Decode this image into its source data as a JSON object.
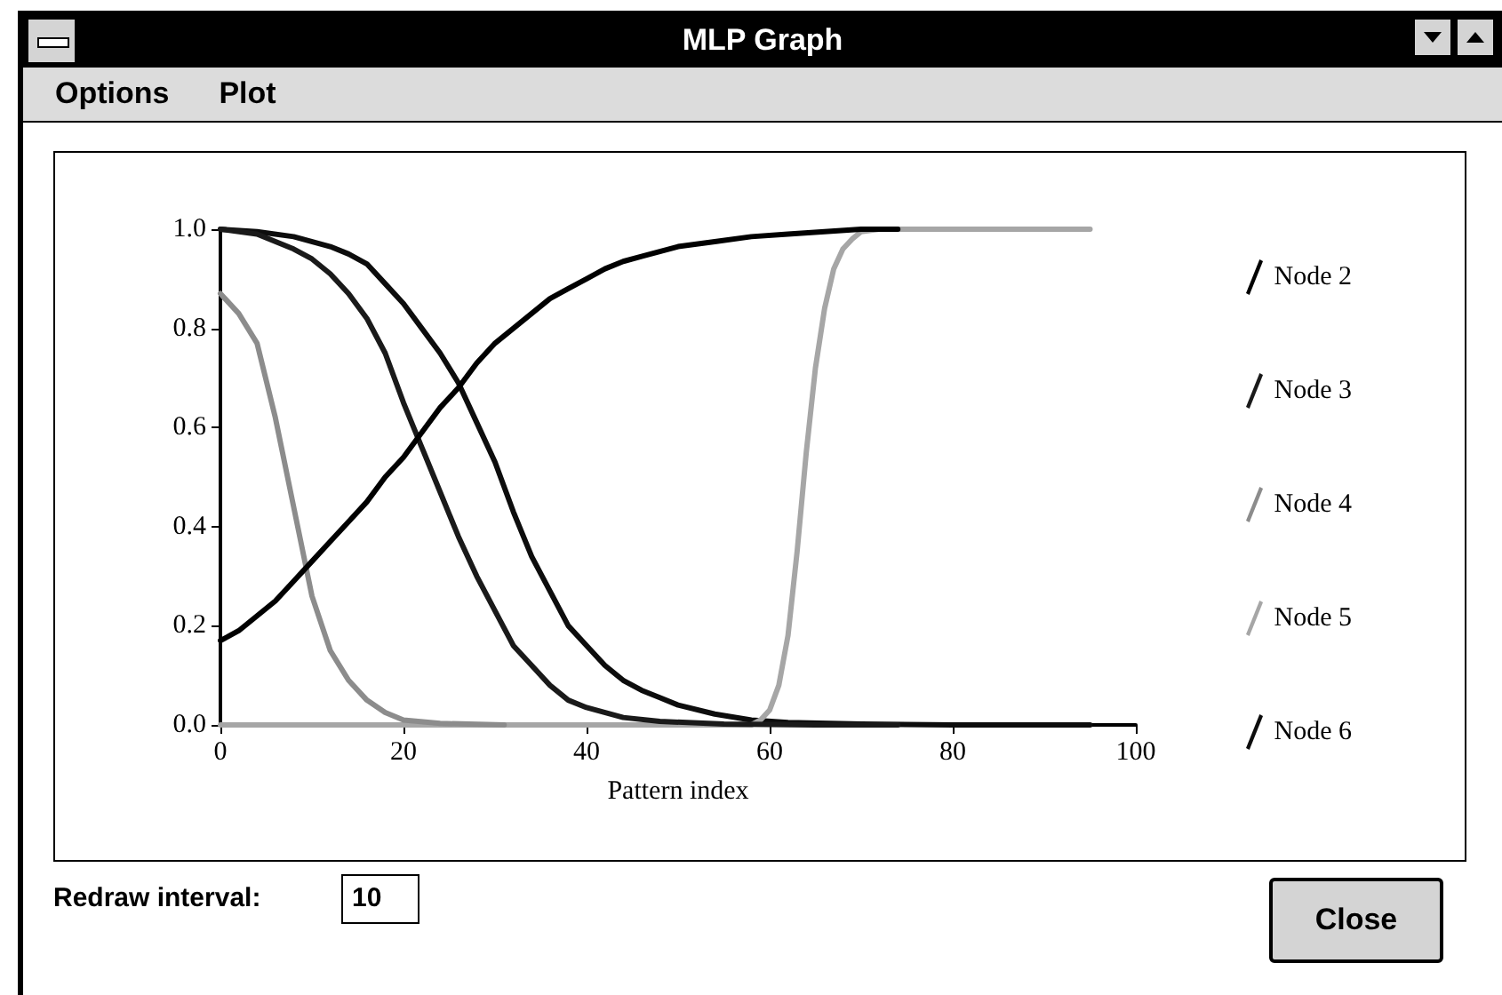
{
  "chart_data": {
    "type": "line",
    "title": "MLP Graph",
    "xlabel": "Pattern index",
    "annotations": [
      "Options",
      "Plot",
      "Redraw interval:",
      "10",
      "Close"
    ],
    "xlim": [
      0,
      100
    ],
    "xticks": [
      0,
      20,
      40,
      60,
      80,
      100
    ],
    "ylim": [
      0,
      1
    ],
    "yticks": [
      {
        "value": 0,
        "label": "0.0"
      },
      0.2,
      0.4,
      0.6,
      0.8,
      {
        "value": 1,
        "label": "1.0"
      }
    ],
    "grid": false,
    "legend": "right",
    "marker": "none",
    "line_style": "solid",
    "series": [
      {
        "name": "Node 2",
        "color": "#000000",
        "x": [
          0,
          2,
          4,
          6,
          8,
          10,
          12,
          14,
          16,
          18,
          20,
          22,
          24,
          26,
          28,
          30,
          32,
          34,
          36,
          38,
          40,
          42,
          44,
          46,
          48,
          50,
          54,
          58,
          62,
          66,
          70,
          74
        ],
        "values": [
          0.17,
          0.19,
          0.22,
          0.25,
          0.29,
          0.33,
          0.37,
          0.41,
          0.45,
          0.5,
          0.54,
          0.59,
          0.64,
          0.68,
          0.73,
          0.77,
          0.8,
          0.83,
          0.86,
          0.88,
          0.9,
          0.92,
          0.935,
          0.945,
          0.955,
          0.965,
          0.975,
          0.985,
          0.99,
          0.995,
          1.0,
          1.0
        ]
      },
      {
        "name": "Node 3",
        "color": "#1a1a1a",
        "x": [
          0,
          4,
          8,
          10,
          12,
          14,
          16,
          18,
          20,
          22,
          24,
          26,
          28,
          30,
          32,
          34,
          36,
          38,
          40,
          44,
          48,
          55,
          65,
          74
        ],
        "values": [
          1.0,
          0.99,
          0.96,
          0.94,
          0.91,
          0.87,
          0.82,
          0.75,
          0.65,
          0.56,
          0.47,
          0.38,
          0.3,
          0.23,
          0.16,
          0.12,
          0.08,
          0.05,
          0.035,
          0.015,
          0.007,
          0.002,
          0,
          0
        ]
      },
      {
        "name": "Node 4",
        "color": "#8c8c8c",
        "x": [
          0,
          2,
          4,
          6,
          8,
          10,
          12,
          14,
          16,
          18,
          20,
          24,
          31
        ],
        "values": [
          0.87,
          0.83,
          0.77,
          0.62,
          0.44,
          0.26,
          0.15,
          0.09,
          0.05,
          0.025,
          0.01,
          0.003,
          0
        ]
      },
      {
        "name": "Node 5",
        "color": "#a6a6a6",
        "x": [
          0,
          58,
          59,
          60,
          61,
          62,
          63,
          64,
          65,
          66,
          67,
          68,
          69,
          70,
          72,
          95
        ],
        "values": [
          0,
          0,
          0.01,
          0.03,
          0.08,
          0.18,
          0.35,
          0.55,
          0.72,
          0.84,
          0.92,
          0.96,
          0.98,
          0.995,
          1,
          1
        ]
      },
      {
        "name": "Node 6",
        "color": "#0d0d0d",
        "x": [
          0,
          4,
          8,
          12,
          14,
          16,
          18,
          20,
          22,
          24,
          26,
          28,
          30,
          32,
          34,
          36,
          38,
          40,
          42,
          44,
          46,
          48,
          50,
          54,
          58,
          62,
          70,
          80,
          95
        ],
        "values": [
          1.0,
          0.995,
          0.985,
          0.965,
          0.95,
          0.93,
          0.89,
          0.85,
          0.8,
          0.75,
          0.69,
          0.61,
          0.53,
          0.43,
          0.34,
          0.27,
          0.2,
          0.16,
          0.12,
          0.09,
          0.07,
          0.055,
          0.04,
          0.022,
          0.01,
          0.005,
          0.002,
          0,
          0
        ]
      }
    ]
  }
}
